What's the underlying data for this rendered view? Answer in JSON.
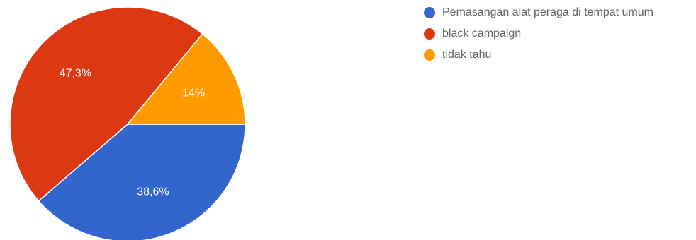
{
  "chart_data": {
    "type": "pie",
    "slices": [
      {
        "label": "Pemasangan alat peraga di tempat umum",
        "value": 38.6,
        "value_label": "38,6%",
        "color": "#3366cc"
      },
      {
        "label": "black campaign",
        "value": 47.3,
        "value_label": "47,3%",
        "color": "#dc3912"
      },
      {
        "label": "tidak tahu",
        "value": 14.0,
        "value_label": "14%",
        "color": "#ff9900"
      }
    ],
    "start": "east",
    "direction": "clockwise",
    "legend_position": "right"
  }
}
